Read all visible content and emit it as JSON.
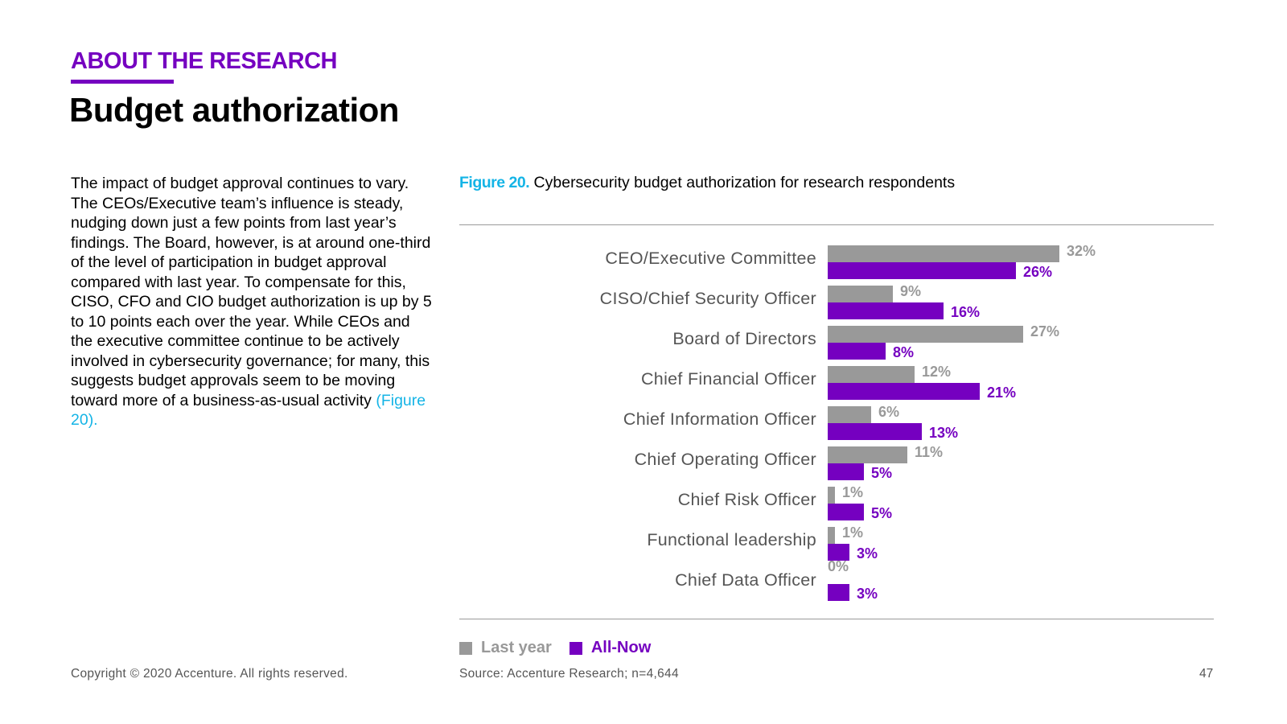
{
  "header": {
    "eyebrow": "ABOUT THE RESEARCH",
    "title": "Budget authorization"
  },
  "body": {
    "text": "The impact of budget approval continues to vary. The CEOs/Executive team’s influence is steady, nudging down just a few points from last year’s findings. The Board, however, is at around one-third of the level of participation in budget approval compared with last year. To compensate for this, CISO, CFO and CIO budget authorization is up by 5 to 10 points each over the year. While CEOs and the executive committee continue to be actively involved in cybersecurity governance; for many, this suggests budget approvals seem to be moving toward more of a business-as-usual activity ",
    "link": "(Figure 20)."
  },
  "figure": {
    "number": "Figure 20.",
    "caption": " Cybersecurity budget authorization for research respondents"
  },
  "colors": {
    "last_year": "#999999",
    "all_now": "#7500c0",
    "accent_blue": "#14b4e6"
  },
  "chart_data": {
    "type": "bar",
    "orientation": "horizontal",
    "title": "Cybersecurity budget authorization for research respondents",
    "xlabel": "",
    "ylabel": "",
    "xlim": [
      0,
      32
    ],
    "grid": false,
    "legend_position": "bottom-left",
    "categories": [
      "CEO/Executive Committee",
      "CISO/Chief Security Officer",
      "Board of Directors",
      "Chief Financial Officer",
      "Chief Information Officer",
      "Chief Operating Officer",
      "Chief Risk Officer",
      "Functional leadership",
      "Chief Data Officer"
    ],
    "series": [
      {
        "name": "Last year",
        "values": [
          32,
          9,
          27,
          12,
          6,
          11,
          1,
          1,
          0
        ],
        "labels": [
          "32%",
          "9%",
          "27%",
          "12%",
          "6%",
          "11%",
          "1%",
          "1%",
          "0%"
        ]
      },
      {
        "name": "All-Now",
        "values": [
          26,
          16,
          8,
          21,
          13,
          5,
          5,
          3,
          3
        ],
        "labels": [
          "26%",
          "16%",
          "8%",
          "21%",
          "13%",
          "5%",
          "5%",
          "3%",
          "3%"
        ]
      }
    ]
  },
  "legend": {
    "last_year": "Last year",
    "all_now": "All-Now"
  },
  "footer": {
    "source": "Source: Accenture Research; n=4,644",
    "copyright": "Copyright © 2020 Accenture. All rights reserved.",
    "page_number": "47"
  }
}
